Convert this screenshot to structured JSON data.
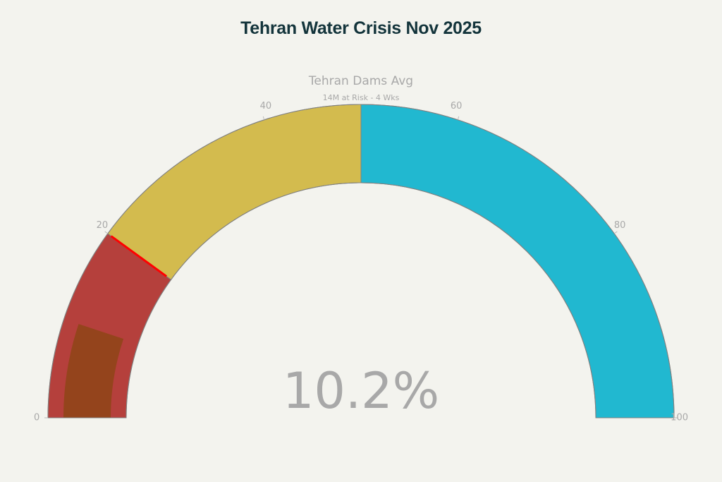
{
  "chart_data": {
    "type": "gauge",
    "title": "Tehran Water Crisis Nov 2025",
    "gauge_title": "Tehran Dams Avg",
    "gauge_subtitle": "14M at Risk - 4 Wks",
    "value": 10.2,
    "value_text": "10.2%",
    "range": [
      0,
      100
    ],
    "threshold": 20,
    "threshold_color": "#ff0000",
    "bar_color": "#8b4513",
    "ticks": [
      "0",
      "20",
      "40",
      "60",
      "80",
      "100"
    ],
    "steps": [
      {
        "range": [
          0,
          20
        ],
        "color": "#b5403c"
      },
      {
        "range": [
          20,
          50
        ],
        "color": "#d3bb4e"
      },
      {
        "range": [
          50,
          100
        ],
        "color": "#21b8d0"
      }
    ],
    "background_color": "#f3f3ee",
    "outline_color": "#808080"
  }
}
